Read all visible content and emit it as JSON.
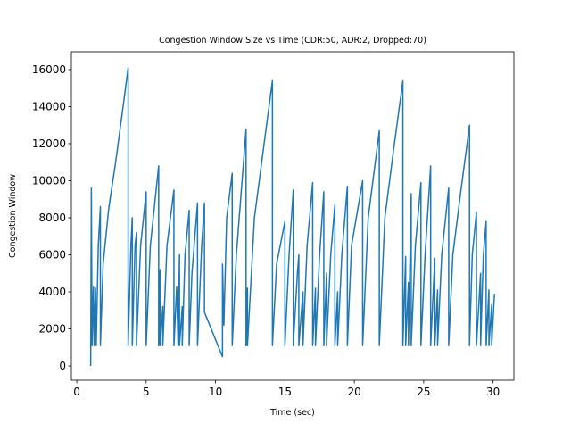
{
  "chart_data": {
    "type": "line",
    "title": "Congestion Window Size vs Time (CDR:50, ADR:2, Dropped:70)",
    "x_label": "Time (sec)",
    "y_label": "Congestion Window",
    "color": "#1f77b4",
    "x": [
      1.0,
      1.05,
      1.1,
      1.2,
      1.25,
      1.35,
      1.4,
      1.55,
      1.7,
      1.7,
      1.9,
      2.3,
      2.8,
      3.3,
      3.7,
      3.7,
      3.9,
      4.0,
      4.0,
      4.2,
      4.3,
      4.3,
      4.6,
      5.0,
      5.0,
      5.3,
      5.9,
      5.9,
      6.0,
      6.0,
      6.2,
      6.2,
      6.5,
      7.0,
      7.0,
      7.2,
      7.3,
      7.4,
      7.4,
      7.6,
      7.6,
      7.8,
      8.1,
      8.1,
      8.3,
      8.7,
      8.7,
      9.0,
      9.2,
      9.2,
      10.5,
      10.5,
      10.6,
      10.8,
      11.2,
      11.2,
      11.5,
      12.2,
      12.2,
      12.3,
      12.3,
      12.8,
      13.5,
      14.1,
      14.1,
      14.4,
      15.0,
      15.0,
      15.3,
      15.6,
      15.6,
      15.9,
      16.0,
      16.0,
      16.3,
      16.3,
      16.6,
      17.0,
      17.0,
      17.2,
      17.2,
      17.5,
      17.8,
      17.8,
      18.0,
      18.0,
      18.3,
      18.6,
      18.6,
      18.8,
      18.8,
      19.1,
      19.5,
      19.5,
      19.8,
      20.6,
      20.6,
      21.0,
      21.8,
      21.8,
      22.2,
      22.8,
      23.5,
      23.5,
      23.7,
      23.7,
      23.9,
      23.9,
      24.1,
      24.1,
      24.4,
      24.8,
      24.8,
      25.1,
      25.5,
      25.5,
      25.8,
      25.8,
      26.0,
      26.0,
      26.3,
      26.8,
      26.8,
      27.1,
      27.6,
      28.3,
      28.3,
      28.5,
      28.8,
      28.8,
      29.1,
      29.1,
      29.3,
      29.5,
      29.5,
      29.7,
      29.7,
      29.9,
      29.9,
      30.1
    ],
    "values": [
      0,
      9600,
      1100,
      4300,
      1100,
      4200,
      1100,
      6500,
      8600,
      1100,
      5500,
      8500,
      11000,
      13800,
      16100,
      1100,
      6500,
      8000,
      1100,
      6500,
      7200,
      1100,
      6500,
      9400,
      1100,
      6500,
      10800,
      1100,
      5200,
      1100,
      3200,
      1100,
      6500,
      9500,
      1100,
      4300,
      1100,
      6000,
      1100,
      3200,
      1100,
      6000,
      8400,
      1100,
      5000,
      8800,
      1100,
      6500,
      8800,
      2900,
      500,
      5500,
      2200,
      8000,
      10400,
      1100,
      6000,
      12800,
      1100,
      4200,
      1100,
      8000,
      12000,
      15400,
      1100,
      5500,
      7800,
      1100,
      6000,
      9500,
      1100,
      5000,
      6000,
      1100,
      4000,
      1100,
      6500,
      9900,
      1100,
      4200,
      1100,
      6000,
      9400,
      1100,
      5000,
      1100,
      6000,
      8700,
      1100,
      4000,
      1100,
      6000,
      9700,
      1100,
      6500,
      10000,
      1100,
      8000,
      12700,
      1100,
      8000,
      11500,
      15400,
      1100,
      5900,
      1100,
      4500,
      1100,
      9300,
      1100,
      6500,
      9900,
      1100,
      6000,
      10800,
      1100,
      5800,
      1100,
      4100,
      1100,
      6000,
      9600,
      1100,
      6000,
      9000,
      13000,
      1100,
      6000,
      8300,
      1100,
      5000,
      1100,
      6000,
      7800,
      1100,
      4100,
      1100,
      3300,
      1100,
      3900
    ],
    "xlim": [
      -0.39,
      31.5
    ],
    "ylim": [
      -770,
      16960
    ],
    "xticks": [
      0,
      5,
      10,
      15,
      20,
      25,
      30
    ],
    "yticks": [
      0,
      2000,
      4000,
      6000,
      8000,
      10000,
      12000,
      14000,
      16000
    ]
  }
}
